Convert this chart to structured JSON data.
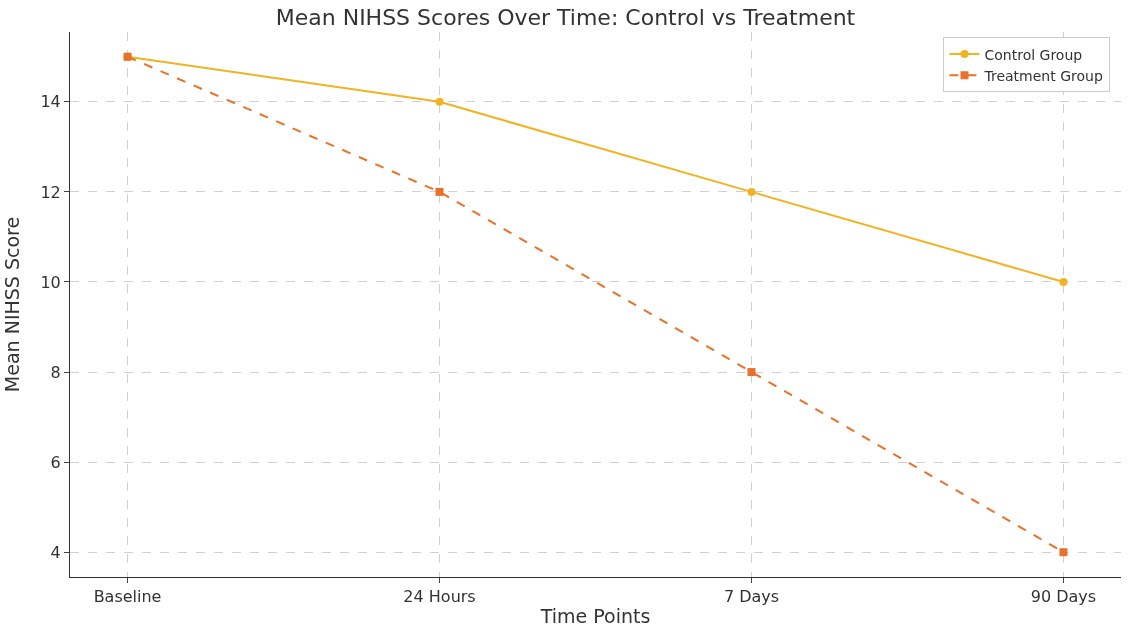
{
  "chart_data": {
    "type": "line",
    "title": "Mean NIHSS Scores Over Time: Control vs Treatment",
    "xlabel": "Time Points",
    "ylabel": "Mean NIHSS Score",
    "categories": [
      "Baseline",
      "24 Hours",
      "7 Days",
      "90 Days"
    ],
    "series": [
      {
        "name": "Control Group",
        "color": "#f0b323",
        "values": [
          15,
          14,
          12,
          10
        ],
        "marker": "circle",
        "line_style": "solid"
      },
      {
        "name": "Treatment Group",
        "color": "#e8712b",
        "values": [
          15,
          12,
          8,
          4
        ],
        "marker": "square",
        "line_style": "dashed"
      }
    ],
    "ylim": [
      3.45,
      15.55
    ],
    "yticks": [
      4,
      6,
      8,
      10,
      12,
      14
    ],
    "grid": true,
    "legend": "top right"
  }
}
